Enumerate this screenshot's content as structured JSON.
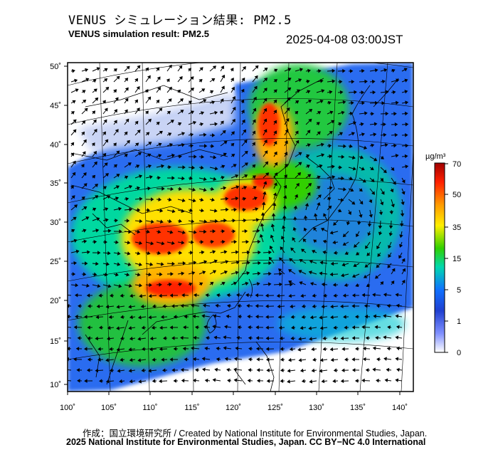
{
  "header": {
    "title_jp": "VENUS シミュレーション結果: PM2.5",
    "title_en": "VENUS simulation result: PM2.5",
    "timestamp": "2025-04-08 03:00JST"
  },
  "map": {
    "lon_ticks": [
      "100˚",
      "105˚",
      "110˚",
      "115˚",
      "120˚",
      "125˚",
      "130˚",
      "135˚",
      "140˚"
    ],
    "lat_ticks": [
      "50˚",
      "45˚",
      "40˚",
      "35˚",
      "30˚",
      "25˚",
      "20˚",
      "15˚",
      "10˚"
    ],
    "field": "PM2.5 concentration with wind vectors",
    "hotspots": [
      {
        "region": "Sichuan / Chongqing basin",
        "level": "high"
      },
      {
        "region": "North China Plain / Shandong",
        "level": "high"
      },
      {
        "region": "Northeast China / Liaoning",
        "level": "high"
      },
      {
        "region": "Yunnan-Guangxi",
        "level": "high"
      }
    ]
  },
  "colorbar": {
    "unit": "µg/m³",
    "ticks": [
      "70",
      "50",
      "35",
      "15",
      "5",
      "1",
      "0"
    ],
    "colors": [
      "#b00000",
      "#ff2000",
      "#ff9a00",
      "#ffff00",
      "#30d000",
      "#00e0c0",
      "#1070ff",
      "#2030c0",
      "#ffffff"
    ]
  },
  "footer": {
    "credit_line1": "作成：国立環境研究所 / Created by National Institute for Environmental Studies, Japan.",
    "credit_line2": "2025 National Institute for Environmental Studies, Japan. CC BY−NC 4.0 International"
  }
}
